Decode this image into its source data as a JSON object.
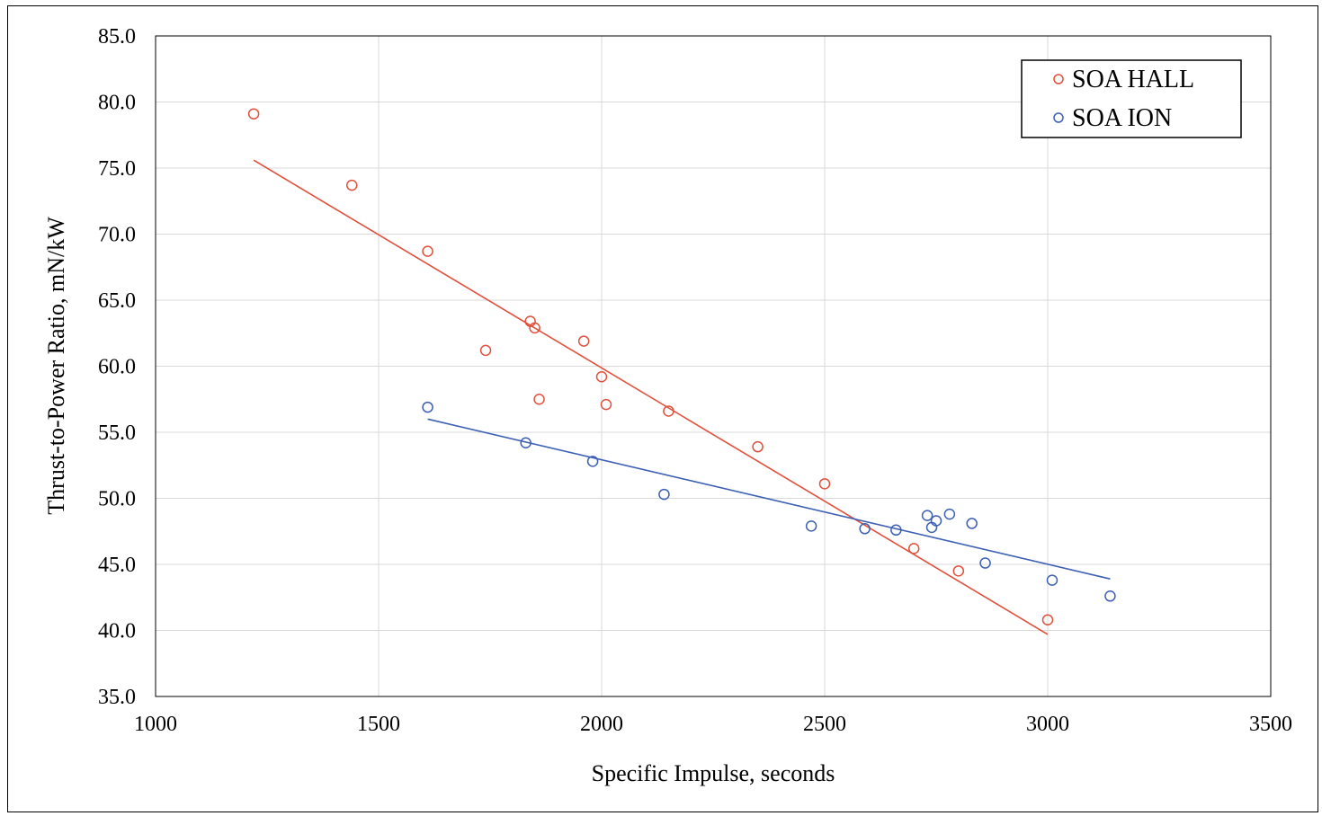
{
  "chart_data": {
    "type": "scatter",
    "title": "",
    "xlabel": "Specific Impulse, seconds",
    "ylabel": "Thrust-to-Power Ratio, mN/kW",
    "xlim": [
      1000,
      3500
    ],
    "ylim": [
      35.0,
      85.0
    ],
    "x_ticks": [
      "1000",
      "1500",
      "2000",
      "2500",
      "3000",
      "3500"
    ],
    "y_ticks": [
      "35.0",
      "40.0",
      "45.0",
      "50.0",
      "55.0",
      "60.0",
      "65.0",
      "70.0",
      "75.0",
      "80.0",
      "85.0"
    ],
    "grid": true,
    "legend_position": "top-right",
    "series": [
      {
        "name": "SOA HALL",
        "color": "#e0503c",
        "marker": "open-circle",
        "points": [
          [
            1220,
            79.1
          ],
          [
            1440,
            73.7
          ],
          [
            1610,
            68.7
          ],
          [
            1740,
            61.2
          ],
          [
            1840,
            63.4
          ],
          [
            1850,
            62.9
          ],
          [
            1860,
            57.5
          ],
          [
            1960,
            61.9
          ],
          [
            2000,
            59.2
          ],
          [
            2010,
            57.1
          ],
          [
            2150,
            56.6
          ],
          [
            2350,
            53.9
          ],
          [
            2500,
            51.1
          ],
          [
            2700,
            46.2
          ],
          [
            2800,
            44.5
          ],
          [
            3000,
            40.8
          ]
        ],
        "trendline": [
          [
            1220,
            75.6
          ],
          [
            3000,
            39.7
          ]
        ]
      },
      {
        "name": "SOA ION",
        "color": "#3c5fb4",
        "marker": "open-circle",
        "points": [
          [
            1610,
            56.9
          ],
          [
            1830,
            54.2
          ],
          [
            1980,
            52.8
          ],
          [
            2140,
            50.3
          ],
          [
            2470,
            47.9
          ],
          [
            2590,
            47.7
          ],
          [
            2660,
            47.6
          ],
          [
            2730,
            48.7
          ],
          [
            2740,
            47.8
          ],
          [
            2750,
            48.3
          ],
          [
            2780,
            48.8
          ],
          [
            2830,
            48.1
          ],
          [
            2860,
            45.1
          ],
          [
            3010,
            43.8
          ],
          [
            3140,
            42.6
          ]
        ],
        "trendline": [
          [
            1610,
            56.0
          ],
          [
            3140,
            43.9
          ]
        ]
      }
    ]
  }
}
